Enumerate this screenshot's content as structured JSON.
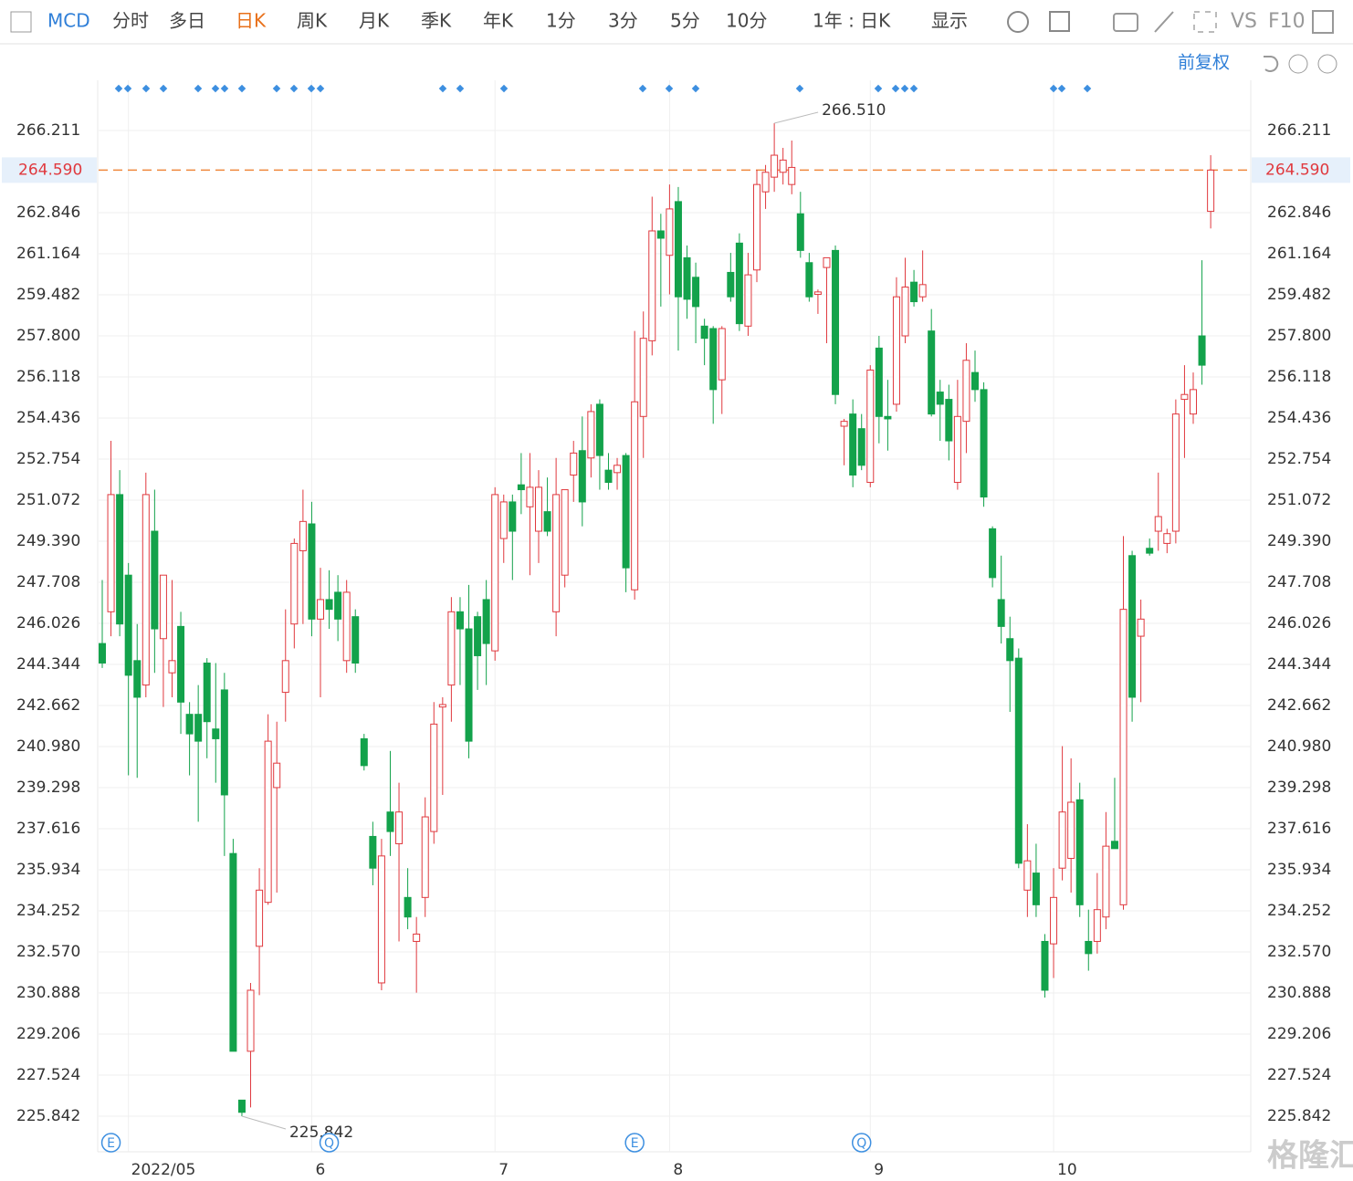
{
  "toolbar": {
    "symbol": "MCD",
    "periods": [
      "分时",
      "多日",
      "日K",
      "周K",
      "月K",
      "季K",
      "年K",
      "1分",
      "3分",
      "5分",
      "10分"
    ],
    "active_index": 2,
    "range_select": "1年 : 日K",
    "display": "显示",
    "vs": "VS",
    "f10": "F10"
  },
  "adjust": "前复权",
  "watermark": "格隆汇",
  "chart_data": {
    "type": "candlestick",
    "categories": [
      null,
      null,
      null,
      "2022/05",
      null,
      null,
      null,
      null,
      null,
      null,
      null,
      null,
      null,
      null,
      null,
      null,
      null,
      null,
      null,
      null,
      null,
      null,
      null,
      null,
      "6",
      null,
      null,
      null,
      null,
      null,
      null,
      null,
      null,
      null,
      null,
      null,
      null,
      null,
      null,
      null,
      null,
      null,
      null,
      null,
      null,
      "7",
      null,
      null,
      null,
      null,
      null,
      null,
      null,
      null,
      null,
      null,
      null,
      null,
      null,
      null,
      null,
      null,
      null,
      null,
      null,
      "8",
      null,
      null,
      null,
      null,
      null,
      null,
      null,
      null,
      null,
      null,
      null,
      null,
      null,
      null,
      null,
      null,
      null,
      null,
      null,
      null,
      null,
      null,
      "9",
      null,
      null,
      null,
      null,
      null,
      null,
      null,
      null,
      null,
      null,
      null,
      null,
      null,
      null,
      null,
      null,
      null,
      null,
      null,
      null,
      "10",
      null,
      null,
      null,
      null,
      null,
      null,
      null,
      null,
      null,
      null,
      null,
      null,
      null,
      null,
      null,
      null,
      null,
      null
    ],
    "open": [
      245.2,
      246.5,
      251.3,
      248.0,
      244.5,
      243.5,
      249.8,
      245.4,
      244.0,
      245.9,
      242.3,
      242.3,
      244.4,
      241.7,
      243.3,
      236.6,
      226.5,
      228.5,
      232.8,
      234.6,
      239.3,
      243.2,
      246.0,
      249.0,
      250.1,
      246.2,
      247.0,
      247.3,
      244.5,
      246.3,
      241.3,
      237.3,
      231.3,
      238.3,
      237.0,
      234.8,
      233.0,
      234.8,
      237.5,
      242.6,
      243.5,
      246.5,
      245.8,
      246.3,
      247.0,
      244.9,
      249.5,
      251.0,
      251.7,
      250.8,
      249.8,
      250.6,
      246.5,
      248.0,
      252.1,
      253.1,
      252.8,
      255.0,
      252.3,
      252.2,
      252.9,
      247.4,
      254.5,
      257.6,
      262.1,
      261.1,
      263.3,
      261.0,
      260.2,
      258.2,
      258.1,
      256.0,
      260.4,
      261.6,
      258.2,
      260.5,
      263.7,
      264.3,
      264.5,
      264.0,
      262.8,
      260.8,
      259.5,
      260.6,
      261.3,
      254.1,
      254.6,
      254.0,
      251.8,
      257.3,
      254.5,
      255.0,
      257.8,
      260.0,
      259.4,
      258.0,
      255.5,
      255.2,
      251.8,
      254.3,
      256.3,
      255.6,
      249.9,
      247.0,
      245.4,
      244.6,
      235.1,
      235.8,
      233.0,
      232.9,
      236.0,
      236.4,
      238.8,
      233.0,
      233.0,
      234.0,
      237.1,
      234.5,
      248.8,
      245.5,
      249.1,
      249.8,
      249.3,
      249.8,
      255.2,
      254.6,
      257.8,
      262.9
    ],
    "high": [
      247.8,
      253.5,
      252.3,
      248.5,
      246.0,
      252.2,
      251.5,
      248.0,
      247.8,
      246.5,
      242.8,
      243.5,
      244.6,
      244.4,
      244.0,
      237.2,
      226.5,
      231.3,
      236.0,
      242.3,
      242.0,
      246.6,
      249.5,
      251.5,
      251.0,
      248.3,
      248.2,
      248.0,
      247.8,
      246.6,
      241.5,
      237.9,
      237.2,
      240.8,
      239.5,
      236.0,
      234.0,
      238.9,
      242.8,
      243.0,
      247.1,
      247.1,
      247.6,
      246.5,
      247.8,
      251.6,
      251.3,
      251.3,
      253.0,
      253.0,
      252.3,
      252.0,
      252.8,
      251.5,
      253.5,
      254.5,
      255.0,
      255.2,
      253.0,
      252.8,
      253.0,
      258.0,
      258.8,
      263.5,
      262.8,
      264.0,
      263.9,
      261.5,
      260.8,
      258.5,
      258.2,
      258.2,
      261.2,
      262.0,
      261.2,
      264.6,
      264.8,
      266.51,
      265.5,
      265.8,
      263.7,
      261.2,
      259.7,
      261.0,
      261.5,
      254.4,
      255.2,
      254.6,
      256.6,
      257.8,
      256.0,
      260.2,
      261.0,
      260.5,
      261.3,
      258.9,
      256.0,
      255.8,
      256.0,
      257.5,
      257.2,
      255.9,
      250.0,
      248.8,
      246.3,
      245.0,
      237.8,
      237.0,
      233.3,
      236.0,
      241.0,
      240.5,
      239.5,
      234.3,
      235.8,
      238.3,
      239.7,
      249.6,
      249.0,
      247.0,
      249.5,
      252.2,
      249.9,
      255.2,
      256.6,
      256.3,
      260.9,
      265.2
    ],
    "low": [
      244.2,
      245.5,
      245.5,
      239.8,
      239.7,
      243.0,
      244.0,
      242.6,
      243.0,
      241.5,
      239.8,
      237.9,
      240.5,
      239.5,
      236.5,
      228.5,
      225.842,
      226.2,
      230.8,
      234.5,
      235.0,
      242.0,
      245.0,
      246.0,
      245.5,
      243.0,
      245.8,
      245.3,
      244.0,
      244.0,
      240.0,
      235.3,
      231.0,
      236.5,
      233.0,
      233.5,
      230.9,
      234.0,
      237.0,
      239.0,
      242.0,
      243.5,
      240.5,
      243.3,
      243.5,
      244.5,
      248.5,
      247.8,
      250.5,
      248.0,
      248.5,
      249.6,
      245.5,
      247.5,
      251.0,
      250.0,
      252.0,
      251.5,
      251.5,
      251.5,
      247.3,
      247.0,
      252.8,
      257.0,
      259.0,
      259.5,
      257.2,
      258.5,
      257.5,
      256.6,
      254.2,
      254.6,
      259.2,
      258.0,
      257.8,
      260.0,
      263.0,
      263.7,
      264.0,
      263.6,
      261.0,
      259.2,
      258.7,
      257.5,
      255.0,
      252.5,
      251.6,
      252.3,
      251.6,
      253.4,
      253.1,
      254.7,
      257.5,
      259.0,
      259.2,
      254.5,
      253.5,
      252.7,
      251.5,
      253.0,
      255.1,
      250.8,
      247.5,
      245.2,
      242.4,
      236.0,
      234.0,
      234.0,
      230.7,
      231.5,
      235.5,
      235.0,
      234.0,
      231.8,
      232.5,
      233.5,
      236.9,
      234.3,
      242.0,
      242.8,
      248.8,
      249.0,
      248.9,
      249.3,
      252.8,
      254.2,
      255.8,
      262.2
    ],
    "close": [
      244.4,
      251.3,
      246.0,
      243.9,
      243.0,
      251.3,
      245.8,
      248.0,
      244.5,
      242.8,
      241.5,
      241.2,
      242.0,
      241.3,
      239.0,
      228.5,
      226.0,
      231.0,
      235.1,
      241.2,
      240.3,
      244.5,
      249.3,
      250.2,
      246.2,
      247.0,
      246.6,
      246.2,
      247.3,
      244.4,
      240.2,
      236.0,
      236.5,
      237.5,
      238.3,
      234.0,
      233.3,
      238.1,
      241.9,
      242.7,
      246.5,
      245.8,
      241.2,
      244.7,
      245.2,
      251.3,
      251.0,
      249.8,
      251.5,
      251.6,
      251.6,
      249.8,
      251.3,
      251.5,
      253.0,
      251.0,
      254.7,
      252.9,
      251.8,
      252.5,
      248.3,
      255.1,
      257.7,
      262.1,
      261.8,
      263.0,
      259.4,
      259.3,
      259.0,
      257.7,
      255.6,
      258.1,
      259.4,
      258.3,
      260.3,
      264.0,
      264.5,
      265.2,
      265.0,
      264.7,
      261.3,
      259.4,
      259.6,
      261.0,
      255.4,
      254.3,
      252.1,
      252.5,
      256.4,
      254.5,
      254.4,
      259.4,
      259.8,
      259.2,
      259.9,
      254.6,
      255.0,
      253.5,
      254.5,
      256.8,
      255.6,
      251.2,
      247.9,
      245.9,
      244.5,
      236.2,
      236.3,
      234.5,
      231.0,
      234.8,
      238.3,
      238.7,
      234.5,
      232.5,
      234.3,
      236.9,
      236.8,
      246.6,
      243.0,
      246.2,
      248.9,
      250.4,
      249.7,
      254.6,
      255.4,
      255.6,
      256.6,
      264.59
    ],
    "up_color": "#e0393e",
    "down_color": "#13a24b",
    "ylim": [
      224.383,
      268.267
    ],
    "yticks": [
      225.842,
      227.524,
      229.206,
      230.888,
      {
        "value": 232.57,
        "label": "232.570"
      },
      234.252,
      235.934,
      237.616,
      239.298,
      {
        "value": 240.98,
        "label": "240.980"
      },
      242.662,
      244.344,
      246.026,
      247.708,
      {
        "value": 249.39,
        "label": "249.390"
      },
      251.072,
      252.754,
      254.436,
      256.118,
      {
        "value": 257.8,
        "label": "257.800"
      },
      259.482,
      261.164,
      262.846,
      266.211
    ],
    "current_price": {
      "value": 264.59,
      "label": "264.590"
    },
    "max_label": {
      "value": 266.51,
      "label": "266.510"
    },
    "min_label": 225.842,
    "event_icons": [
      "E",
      "Q",
      "E",
      "Q"
    ],
    "grid": true
  }
}
